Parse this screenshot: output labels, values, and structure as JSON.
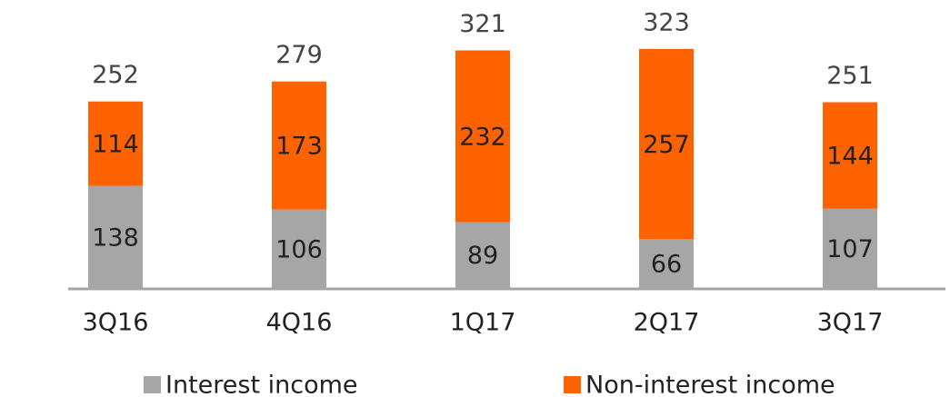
{
  "chart_data": {
    "type": "stacked-bar",
    "categories": [
      "3Q16",
      "4Q16",
      "1Q17",
      "2Q17",
      "3Q17"
    ],
    "series": [
      {
        "name": "Interest income",
        "color": "#a6a6a6",
        "values": [
          138,
          106,
          89,
          66,
          107
        ]
      },
      {
        "name": "Non-interest income",
        "color": "#ff6200",
        "values": [
          114,
          173,
          232,
          257,
          144
        ]
      }
    ],
    "totals": [
      252,
      279,
      321,
      323,
      251
    ],
    "ylim": [
      0,
      340
    ],
    "legend": "bottom"
  }
}
